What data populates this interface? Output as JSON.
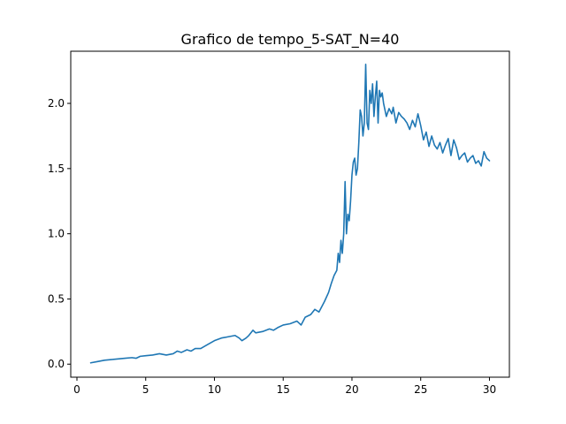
{
  "chart_data": {
    "type": "line",
    "title": "Grafico de tempo_5-SAT_N=40",
    "xlabel": "",
    "ylabel": "",
    "xlim": [
      -0.45,
      31.45
    ],
    "ylim": [
      -0.1,
      2.4
    ],
    "xticks": [
      0,
      5,
      10,
      15,
      20,
      25,
      30
    ],
    "yticks": [
      0.0,
      0.5,
      1.0,
      1.5,
      2.0
    ],
    "xtick_labels": [
      "0",
      "5",
      "10",
      "15",
      "20",
      "25",
      "30"
    ],
    "ytick_labels": [
      "0.0",
      "0.5",
      "1.0",
      "1.5",
      "2.0"
    ],
    "grid": false,
    "series": [
      {
        "color": "#1f77b4",
        "x": [
          1.0,
          1.5,
          2.0,
          2.5,
          3.0,
          3.5,
          4.0,
          4.3,
          4.6,
          5.0,
          5.5,
          6.0,
          6.5,
          7.0,
          7.3,
          7.6,
          8.0,
          8.3,
          8.6,
          9.0,
          9.5,
          10.0,
          10.5,
          11.0,
          11.5,
          11.8,
          12.0,
          12.3,
          12.5,
          12.8,
          13.0,
          13.5,
          14.0,
          14.3,
          14.6,
          15.0,
          15.5,
          16.0,
          16.3,
          16.6,
          17.0,
          17.3,
          17.6,
          18.0,
          18.3,
          18.5,
          18.7,
          18.9,
          19.0,
          19.1,
          19.2,
          19.3,
          19.4,
          19.5,
          19.6,
          19.7,
          19.8,
          19.9,
          20.0,
          20.1,
          20.2,
          20.3,
          20.4,
          20.5,
          20.6,
          20.7,
          20.8,
          20.9,
          21.0,
          21.1,
          21.2,
          21.3,
          21.4,
          21.5,
          21.6,
          21.7,
          21.8,
          21.9,
          22.0,
          22.1,
          22.2,
          22.3,
          22.4,
          22.5,
          22.7,
          22.9,
          23.0,
          23.2,
          23.4,
          23.6,
          23.8,
          24.0,
          24.2,
          24.4,
          24.6,
          24.8,
          25.0,
          25.2,
          25.4,
          25.6,
          25.8,
          26.0,
          26.2,
          26.4,
          26.6,
          26.8,
          27.0,
          27.2,
          27.4,
          27.6,
          27.8,
          28.0,
          28.2,
          28.4,
          28.6,
          28.8,
          29.0,
          29.2,
          29.4,
          29.6,
          29.8,
          30.0
        ],
        "values": [
          0.01,
          0.02,
          0.03,
          0.035,
          0.04,
          0.045,
          0.05,
          0.045,
          0.06,
          0.065,
          0.07,
          0.08,
          0.07,
          0.08,
          0.1,
          0.09,
          0.11,
          0.1,
          0.12,
          0.12,
          0.15,
          0.18,
          0.2,
          0.21,
          0.22,
          0.2,
          0.18,
          0.2,
          0.22,
          0.26,
          0.24,
          0.25,
          0.27,
          0.26,
          0.28,
          0.3,
          0.31,
          0.33,
          0.3,
          0.36,
          0.38,
          0.42,
          0.4,
          0.48,
          0.55,
          0.62,
          0.68,
          0.72,
          0.85,
          0.78,
          0.95,
          0.85,
          1.0,
          1.4,
          1.0,
          1.15,
          1.1,
          1.25,
          1.45,
          1.55,
          1.58,
          1.45,
          1.5,
          1.7,
          1.95,
          1.9,
          1.75,
          1.85,
          2.3,
          1.85,
          1.8,
          2.1,
          2.0,
          2.15,
          1.9,
          2.05,
          2.17,
          1.85,
          2.1,
          2.05,
          2.08,
          2.0,
          1.95,
          1.9,
          1.96,
          1.92,
          1.97,
          1.85,
          1.93,
          1.9,
          1.88,
          1.85,
          1.8,
          1.87,
          1.82,
          1.92,
          1.83,
          1.72,
          1.78,
          1.67,
          1.75,
          1.68,
          1.65,
          1.7,
          1.62,
          1.68,
          1.73,
          1.6,
          1.72,
          1.66,
          1.57,
          1.6,
          1.62,
          1.55,
          1.58,
          1.6,
          1.54,
          1.56,
          1.52,
          1.63,
          1.58,
          1.56
        ]
      }
    ]
  }
}
